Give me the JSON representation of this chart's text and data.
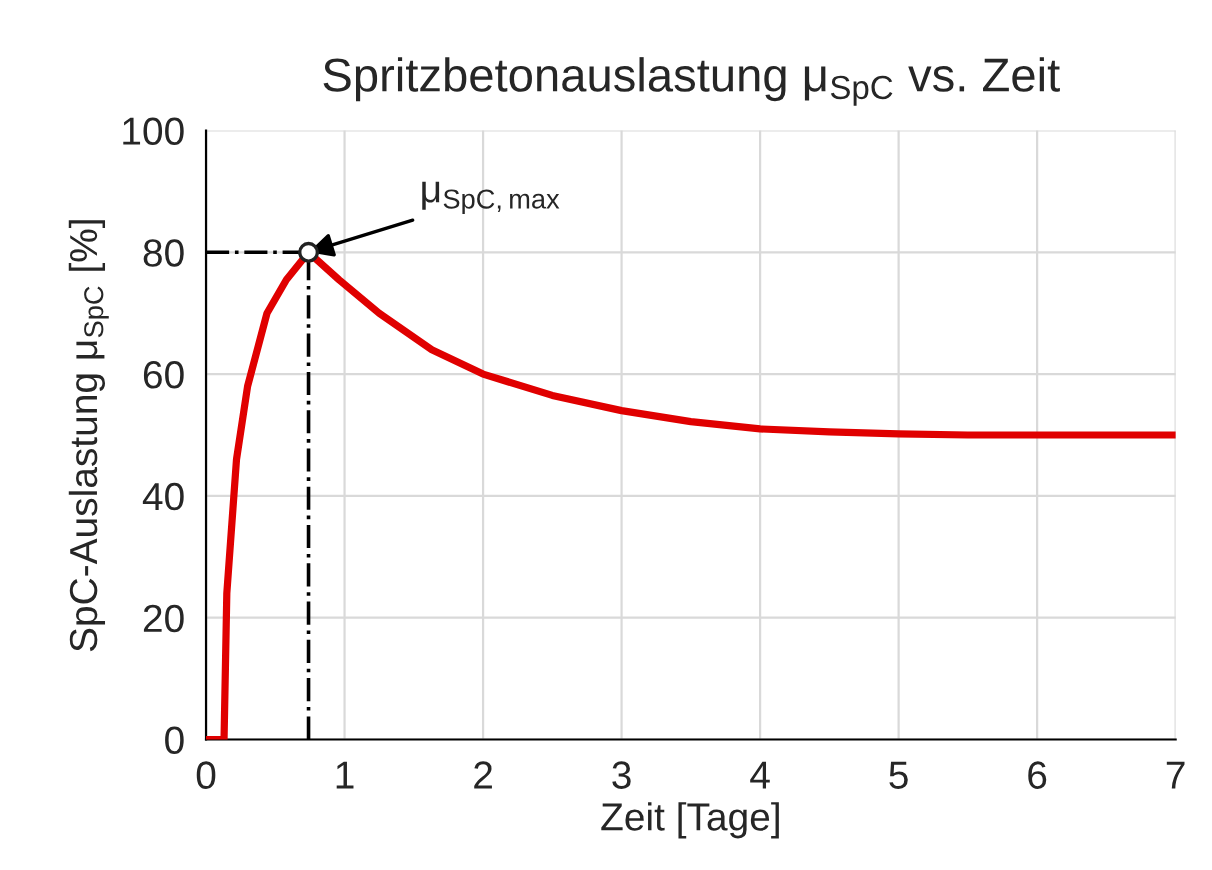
{
  "chart_data": {
    "type": "line",
    "title": "Spritzbetonauslastung μ$_{SpC}$ vs. Zeit",
    "xlabel": "Zeit [Tage]",
    "ylabel": "SpC-Auslastung μ$_{SpC}$ [%]",
    "series": [
      {
        "color": "#e00000",
        "x": [
          0,
          0.13,
          0.15,
          0.22,
          0.3,
          0.44,
          0.58,
          0.74,
          0.96,
          1.25,
          1.63,
          2.0,
          2.5,
          3.0,
          3.5,
          4.0,
          4.5,
          5.0,
          5.5,
          6.0,
          6.5,
          7.0
        ],
        "values": [
          0,
          0,
          24,
          46,
          58,
          70,
          75.5,
          80,
          75.5,
          70,
          64,
          60,
          56.5,
          54,
          52.2,
          51,
          50.5,
          50.2,
          50,
          50,
          50,
          50
        ]
      },
      {
        "type": "scatter",
        "marker": "circle",
        "color": "#222222",
        "x": [
          0.74
        ],
        "values": [
          80
        ]
      }
    ],
    "ref_lines": [
      {
        "axis": "y",
        "value": 80,
        "line_style": "dashdot",
        "color": "#000000"
      },
      {
        "axis": "x",
        "value": 0.74,
        "line_style": "dashdot",
        "color": "#000000"
      }
    ],
    "annotations": [
      {
        "text": "μ$_{SpC,max}$",
        "x": 0.74,
        "y": 80
      }
    ],
    "xlim": [
      0,
      7
    ],
    "xticks": [
      0,
      1,
      2,
      3,
      4,
      5,
      6,
      7
    ],
    "ylim": [
      0,
      100
    ],
    "yticks": [
      0,
      20,
      40,
      60,
      80,
      100
    ],
    "grid": true
  }
}
